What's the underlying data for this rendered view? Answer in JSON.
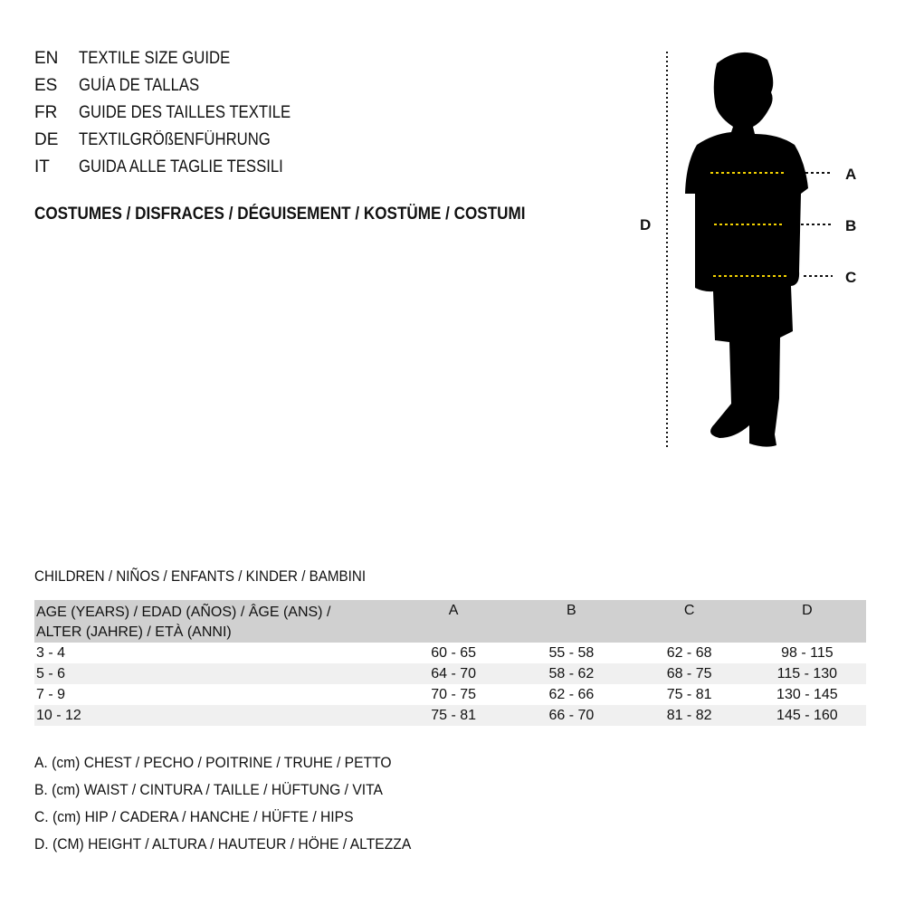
{
  "guide_titles": [
    {
      "code": "EN",
      "text": "TEXTILE SIZE GUIDE"
    },
    {
      "code": "ES",
      "text": "GUÍA DE TALLAS"
    },
    {
      "code": "FR",
      "text": "GUIDE DES TAILLES TEXTILE"
    },
    {
      "code": "DE",
      "text": "TEXTILGRÖßENFÜHRUNG"
    },
    {
      "code": "IT",
      "text": "GUIDA ALLE TAGLIE TESSILI"
    }
  ],
  "category": "COSTUMES / DISFRACES / DÉGUISEMENT / KOSTÜME / COSTUMI",
  "figure": {
    "labels": {
      "a": "A",
      "b": "B",
      "c": "C",
      "d": "D"
    },
    "guide_color": "#f2d100"
  },
  "size_table": {
    "title": "CHILDREN / NIÑOS / ENFANTS / KINDER / BAMBINI",
    "header": {
      "age_line1": "AGE (YEARS) / EDAD (AÑOS) / ÂGE (ANS) /",
      "age_line2": "ALTER (JAHRE) / ETÀ (ANNI)",
      "cols": [
        "A",
        "B",
        "C",
        "D"
      ]
    },
    "rows": [
      [
        "3 - 4",
        "60 - 65",
        "55 - 58",
        "62 - 68",
        "98 - 115"
      ],
      [
        "5 - 6",
        "64 - 70",
        "58 - 62",
        "68 - 75",
        "115 - 130"
      ],
      [
        "7 - 9",
        "70 - 75",
        "62 - 66",
        "75 - 81",
        "130 - 145"
      ],
      [
        "10 - 12",
        "75 - 81",
        "66 - 70",
        "81 - 82",
        "145 - 160"
      ]
    ]
  },
  "legend": [
    "A. (cm) CHEST / PECHO / POITRINE / TRUHE / PETTO",
    "B. (cm) WAIST / CINTURA / TAILLE / HÜFTUNG / VITA",
    "C. (cm) HIP / CADERA / HANCHE / HÜFTE / HIPS",
    "D. (CM) HEIGHT / ALTURA / HAUTEUR / HÖHE / ALTEZZA"
  ]
}
